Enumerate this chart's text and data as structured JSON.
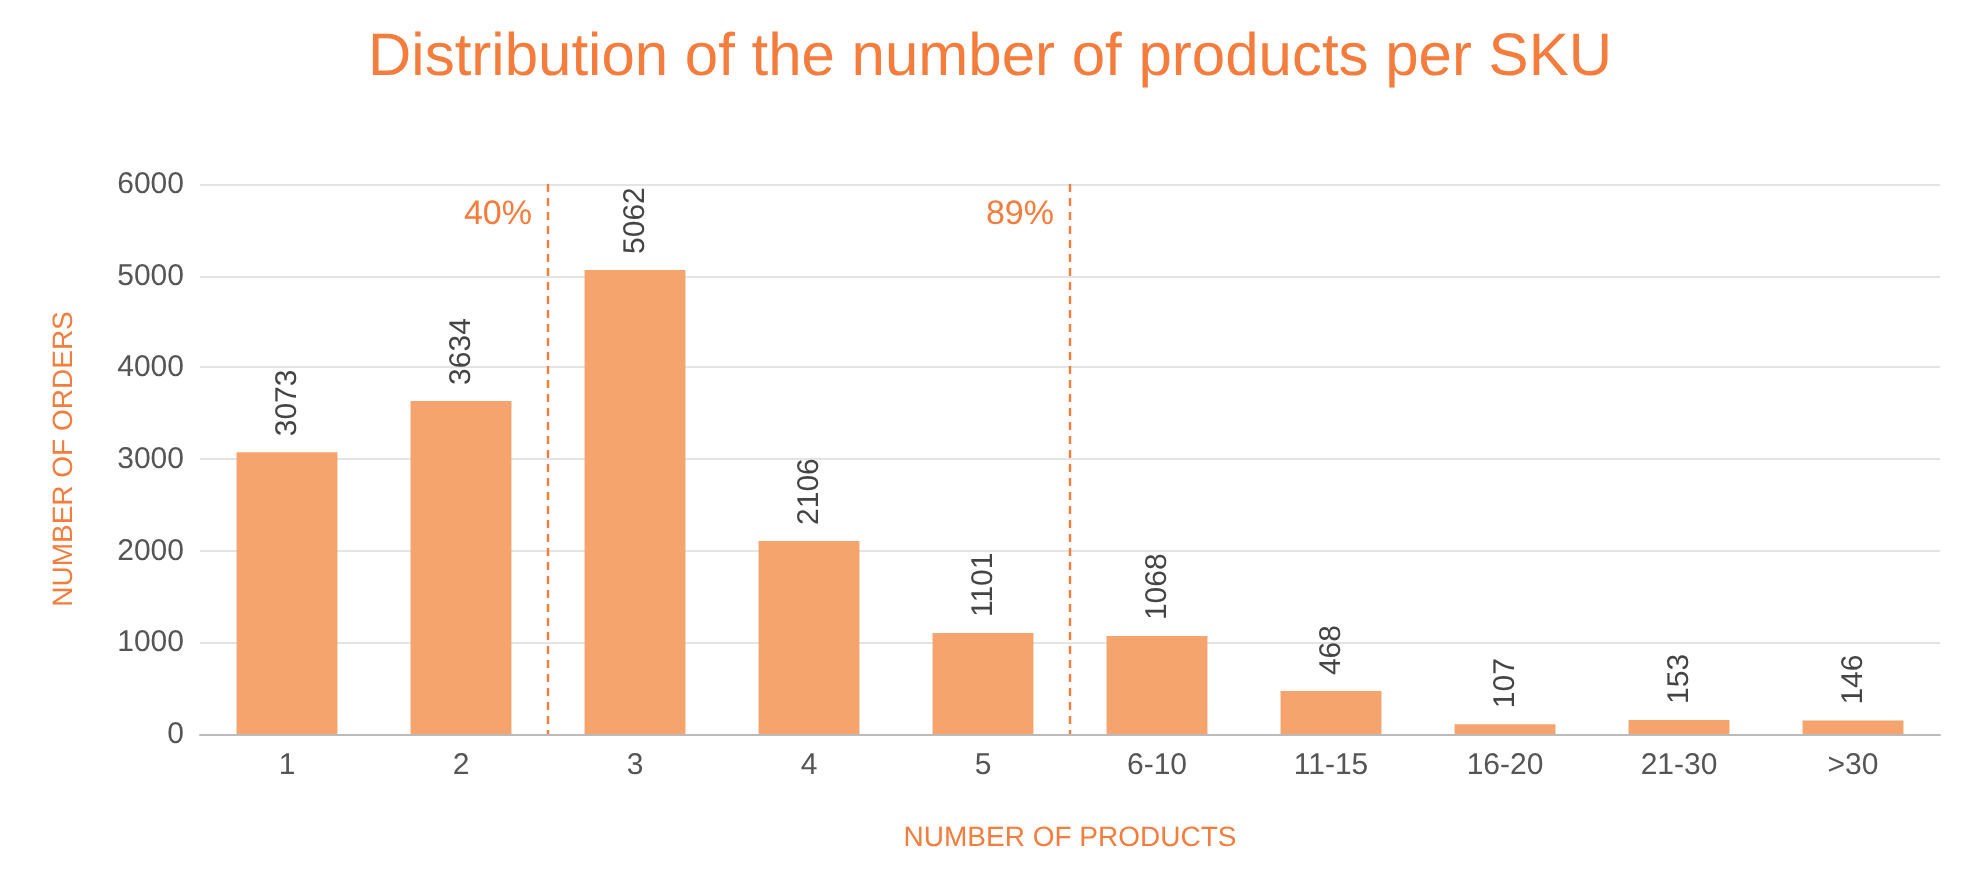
{
  "chart_data": {
    "type": "bar",
    "title": "Distribution of the number of products per SKU",
    "xlabel": "NUMBER OF PRODUCTS",
    "ylabel": "NUMBER OF ORDERS",
    "categories": [
      "1",
      "2",
      "3",
      "4",
      "5",
      "6-10",
      "11-15",
      "16-20",
      "21-30",
      ">30"
    ],
    "values": [
      3073,
      3634,
      5062,
      2106,
      1101,
      1068,
      468,
      107,
      153,
      146
    ],
    "color": "#f4a46c",
    "ylim": [
      0,
      6000
    ],
    "yticks": [
      0,
      1000,
      2000,
      3000,
      4000,
      5000,
      6000
    ],
    "grid": "y",
    "data_labels": true,
    "annotations": [
      "40%",
      "89%"
    ]
  }
}
